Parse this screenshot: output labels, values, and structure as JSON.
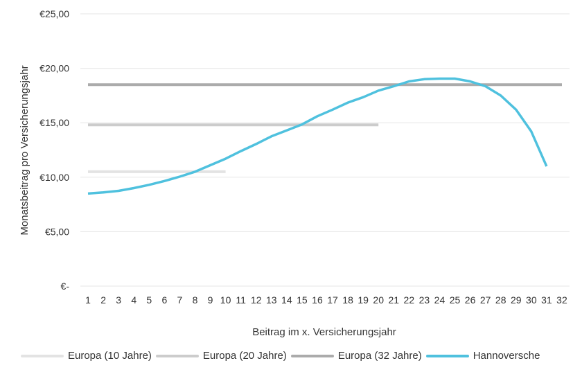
{
  "chart_data": {
    "type": "line",
    "ylabel": "Monatsbeitrag pro Versicherungsjahr",
    "xlabel": "Beitrag im x. Versicherungsjahr",
    "ylim": [
      0,
      25
    ],
    "y_ticks": [
      {
        "value": 0,
        "label": "€-"
      },
      {
        "value": 5,
        "label": "€5,00"
      },
      {
        "value": 10,
        "label": "€10,00"
      },
      {
        "value": 15,
        "label": "€15,00"
      },
      {
        "value": 20,
        "label": "€20,00"
      },
      {
        "value": 25,
        "label": "€25,00"
      }
    ],
    "categories": [
      "1",
      "2",
      "3",
      "4",
      "5",
      "6",
      "7",
      "8",
      "9",
      "10",
      "11",
      "12",
      "13",
      "14",
      "15",
      "16",
      "17",
      "18",
      "19",
      "20",
      "21",
      "22",
      "23",
      "24",
      "25",
      "26",
      "27",
      "28",
      "29",
      "30",
      "31",
      "32"
    ],
    "grid": true,
    "legend_position": "bottom",
    "series": [
      {
        "name": "Europa (10 Jahre)",
        "color": "#e3e3e3",
        "x": [
          1,
          10
        ],
        "values": [
          10.5,
          10.5
        ]
      },
      {
        "name": "Europa (20 Jahre)",
        "color": "#cccccc",
        "x": [
          1,
          20
        ],
        "values": [
          14.8,
          14.8
        ]
      },
      {
        "name": "Europa (32 Jahre)",
        "color": "#ababab",
        "x": [
          1,
          32
        ],
        "values": [
          18.5,
          18.5
        ]
      },
      {
        "name": "Hannoversche",
        "color": "#4fc1de",
        "x": [
          1,
          2,
          3,
          4,
          5,
          6,
          7,
          8,
          9,
          10,
          11,
          12,
          13,
          14,
          15,
          16,
          17,
          18,
          19,
          20,
          21,
          22,
          23,
          24,
          25,
          26,
          27,
          28,
          29,
          30,
          31
        ],
        "values": [
          8.5,
          8.6,
          8.75,
          9.0,
          9.3,
          9.65,
          10.05,
          10.5,
          11.1,
          11.7,
          12.4,
          13.05,
          13.75,
          14.3,
          14.85,
          15.6,
          16.2,
          16.85,
          17.35,
          17.95,
          18.35,
          18.8,
          19.0,
          19.05,
          19.05,
          18.8,
          18.35,
          17.5,
          16.2,
          14.2,
          11.0
        ]
      }
    ]
  }
}
